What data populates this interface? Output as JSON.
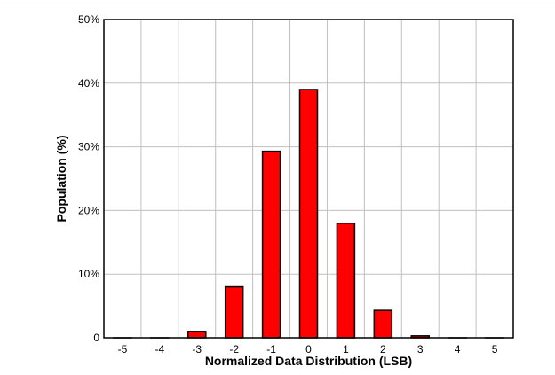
{
  "chart_data": {
    "type": "bar",
    "title": "",
    "xlabel": "Normalized Data Distribution (LSB)",
    "ylabel": "Population (%)",
    "categories": [
      "-5",
      "-4",
      "-3",
      "-2",
      "-1",
      "0",
      "1",
      "2",
      "3",
      "4",
      "5"
    ],
    "values": [
      0,
      0,
      1,
      8,
      29.3,
      39,
      18,
      4.3,
      0.3,
      0,
      0
    ],
    "ylim": [
      0,
      50
    ],
    "yticks": [
      0,
      10,
      20,
      30,
      40,
      50
    ],
    "ytick_labels": [
      "0",
      "10%",
      "20%",
      "30%",
      "40%",
      "50%"
    ],
    "grid": true,
    "legend": "none",
    "bar_color": "#ff0000",
    "bar_edge_color": "#000000",
    "grid_color": "#c0c0c0"
  }
}
